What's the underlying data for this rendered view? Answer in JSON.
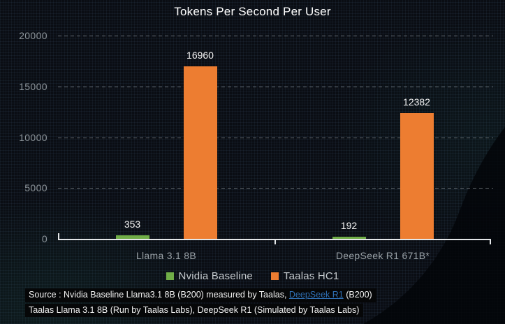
{
  "chart_data": {
    "type": "bar",
    "title": "Tokens Per Second Per User",
    "categories": [
      "Llama 3.1 8B",
      "DeepSeek R1 671B*"
    ],
    "series": [
      {
        "name": "Nvidia Baseline",
        "color": "#70ad47",
        "values": [
          353,
          192
        ]
      },
      {
        "name": "Taalas HC1",
        "color": "#ed7d31",
        "values": [
          16960,
          12382
        ]
      }
    ],
    "ylim": [
      0,
      20000
    ],
    "yticks": [
      0,
      5000,
      10000,
      15000,
      20000
    ],
    "xlabel": "",
    "ylabel": "",
    "grid": "horizontal-dashed",
    "legend_position": "bottom",
    "value_labels": [
      [
        353,
        192
      ],
      [
        16960,
        12382
      ]
    ]
  },
  "footer": {
    "line1_prefix": "Source : Nvidia Baseline Llama3.1 8B (B200) measured by Taalas, ",
    "line1_link_text": "DeepSeek R1",
    "line1_suffix": " (B200)",
    "line2": "Taalas Llama 3.1 8B (Run by Taalas Labs), DeepSeek R1 (Simulated by Taalas Labs)"
  },
  "colors": {
    "background": "#0a0d13",
    "title_text": "#ffffff",
    "value_label_text": "#f5f5f5",
    "axis_line": "#e3e6e8",
    "gridline": "#8a9298",
    "axis_tick_text": "#8d959b",
    "category_text": "#99a1a7",
    "legend_text": "#c6cbcf",
    "link": "#2f6fb3",
    "note_text": "#f2f2f2",
    "note_highlight": "#060708"
  }
}
